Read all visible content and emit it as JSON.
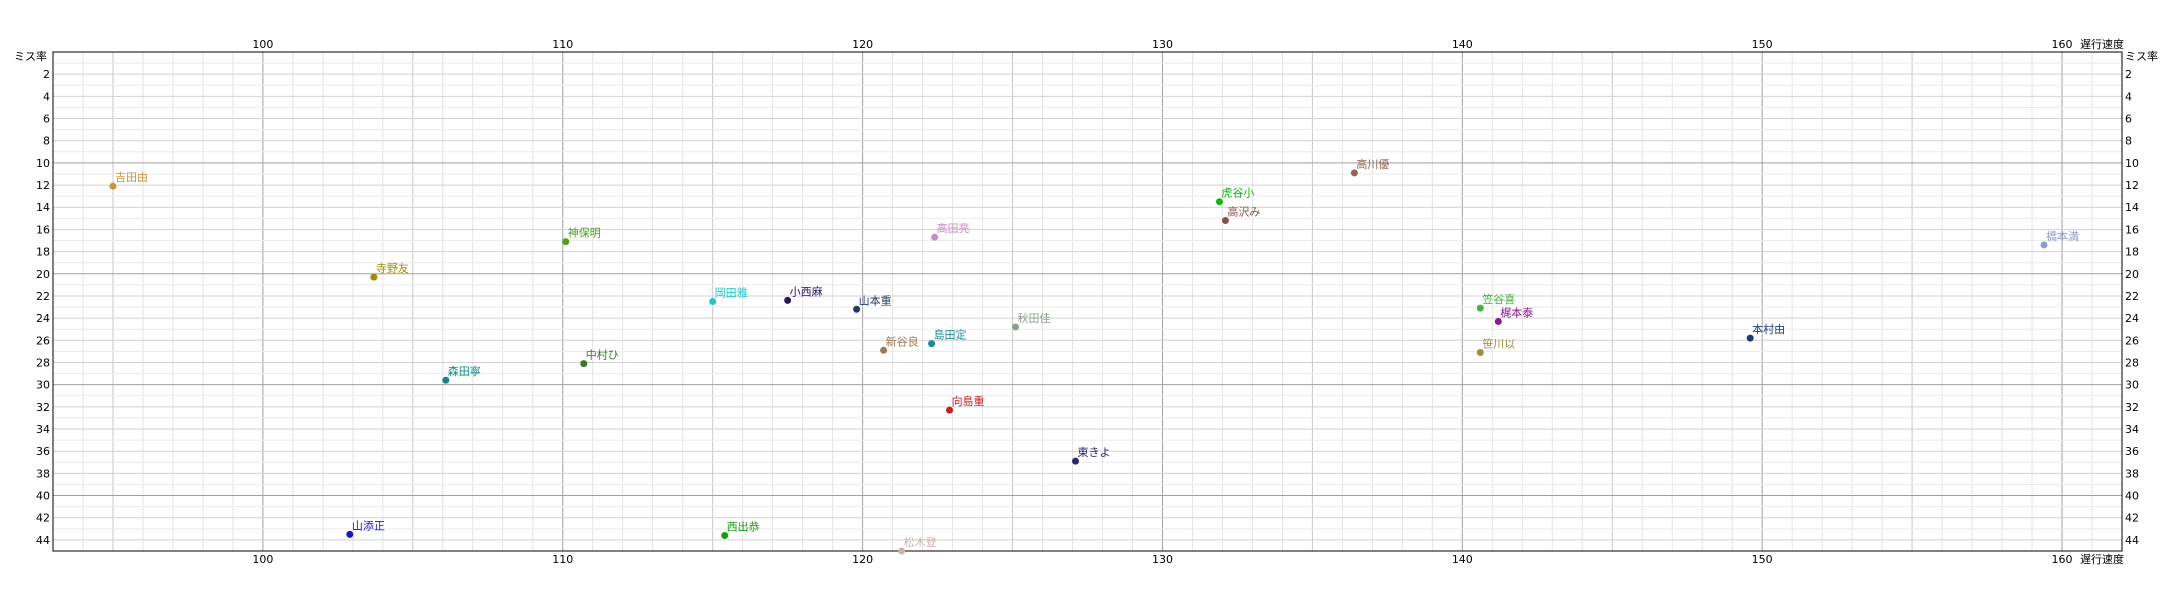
{
  "chart_data": {
    "type": "scatter",
    "x_axis_label": "遅行速度",
    "y_axis_label": "ミス率",
    "xlim": [
      93,
      162
    ],
    "ylim": [
      0,
      45
    ],
    "x_ticks": [
      100,
      110,
      120,
      130,
      140,
      150,
      160
    ],
    "y_ticks": [
      2,
      4,
      6,
      8,
      10,
      12,
      14,
      16,
      18,
      20,
      22,
      24,
      26,
      28,
      30,
      32,
      34,
      36,
      38,
      40,
      42,
      44
    ],
    "grid": true,
    "points": [
      {
        "label": "吉田由",
        "x": 95.0,
        "y": 12.1,
        "color": "#c8963c"
      },
      {
        "label": "寺野友",
        "x": 103.7,
        "y": 20.3,
        "color": "#a08c00"
      },
      {
        "label": "神保明",
        "x": 110.1,
        "y": 17.1,
        "color": "#50a020"
      },
      {
        "label": "森田寧",
        "x": 106.1,
        "y": 29.6,
        "color": "#108888"
      },
      {
        "label": "中村ひ",
        "x": 110.7,
        "y": 28.1,
        "color": "#3c7828"
      },
      {
        "label": "岡田雅",
        "x": 115.0,
        "y": 22.5,
        "color": "#20c8c8"
      },
      {
        "label": "小西麻",
        "x": 117.5,
        "y": 22.4,
        "color": "#28145a"
      },
      {
        "label": "山本重",
        "x": 119.8,
        "y": 23.2,
        "color": "#1e3c64"
      },
      {
        "label": "高田亮",
        "x": 122.4,
        "y": 16.7,
        "color": "#c88cc8"
      },
      {
        "label": "新谷良",
        "x": 120.7,
        "y": 26.9,
        "color": "#a07850"
      },
      {
        "label": "島田定",
        "x": 122.3,
        "y": 26.3,
        "color": "#1e8c96"
      },
      {
        "label": "秋田佳",
        "x": 125.1,
        "y": 24.8,
        "color": "#8ca08c"
      },
      {
        "label": "向島重",
        "x": 122.9,
        "y": 32.3,
        "color": "#c81e1e"
      },
      {
        "label": "東きよ",
        "x": 127.1,
        "y": 36.9,
        "color": "#282878"
      },
      {
        "label": "西出恭",
        "x": 115.4,
        "y": 43.6,
        "color": "#14a014"
      },
      {
        "label": "松木登",
        "x": 121.3,
        "y": 45.0,
        "color": "#c8b4aa"
      },
      {
        "label": "山添正",
        "x": 102.9,
        "y": 43.5,
        "color": "#1414c8"
      },
      {
        "label": "虎谷小",
        "x": 131.9,
        "y": 13.5,
        "color": "#14b414"
      },
      {
        "label": "高沢み",
        "x": 132.1,
        "y": 15.2,
        "color": "#8c5050"
      },
      {
        "label": "高川優",
        "x": 136.4,
        "y": 10.9,
        "color": "#966450"
      },
      {
        "label": "笠谷喜",
        "x": 140.6,
        "y": 23.1,
        "color": "#46b446"
      },
      {
        "label": "梶本泰",
        "x": 141.2,
        "y": 24.3,
        "color": "#8c148c"
      },
      {
        "label": "笹川以",
        "x": 140.6,
        "y": 27.1,
        "color": "#a08c3c"
      },
      {
        "label": "本村由",
        "x": 149.6,
        "y": 25.8,
        "color": "#1e3c78"
      },
      {
        "label": "橋本満",
        "x": 159.4,
        "y": 17.4,
        "color": "#8c9ec8"
      }
    ]
  }
}
